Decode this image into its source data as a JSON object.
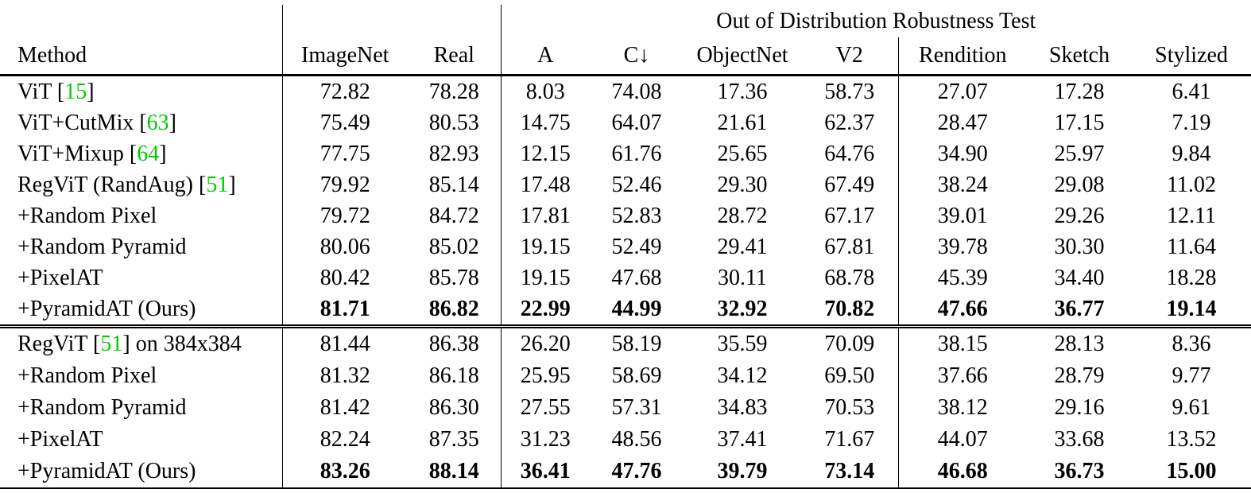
{
  "page": {
    "background_color": "#ffffff",
    "text_color": "#000000",
    "citation_color": "#00cc00"
  },
  "table": {
    "span_header": "Out of Distribution Robustness Test",
    "columns": [
      "Method",
      "ImageNet",
      "Real",
      "A",
      "C↓",
      "ObjectNet",
      "V2",
      "Rendition",
      "Sketch",
      "Stylized"
    ],
    "groups": [
      {
        "rows": [
          {
            "method": {
              "pre": "ViT ",
              "cite": "15",
              "post": ""
            },
            "bold": false,
            "values": [
              "72.82",
              "78.28",
              "8.03",
              "74.08",
              "17.36",
              "58.73",
              "27.07",
              "17.28",
              "6.41"
            ]
          },
          {
            "method": {
              "pre": "ViT+CutMix ",
              "cite": "63",
              "post": ""
            },
            "bold": false,
            "values": [
              "75.49",
              "80.53",
              "14.75",
              "64.07",
              "21.61",
              "62.37",
              "28.47",
              "17.15",
              "7.19"
            ]
          },
          {
            "method": {
              "pre": "ViT+Mixup ",
              "cite": "64",
              "post": ""
            },
            "bold": false,
            "values": [
              "77.75",
              "82.93",
              "12.15",
              "61.76",
              "25.65",
              "64.76",
              "34.90",
              "25.97",
              "9.84"
            ]
          },
          {
            "method": {
              "pre": "RegViT (RandAug) ",
              "cite": "51",
              "post": ""
            },
            "bold": false,
            "values": [
              "79.92",
              "85.14",
              "17.48",
              "52.46",
              "29.30",
              "67.49",
              "38.24",
              "29.08",
              "11.02"
            ]
          },
          {
            "method": {
              "pre": "+Random Pixel",
              "cite": "",
              "post": ""
            },
            "bold": false,
            "values": [
              "79.72",
              "84.72",
              "17.81",
              "52.83",
              "28.72",
              "67.17",
              "39.01",
              "29.26",
              "12.11"
            ]
          },
          {
            "method": {
              "pre": "+Random Pyramid",
              "cite": "",
              "post": ""
            },
            "bold": false,
            "values": [
              "80.06",
              "85.02",
              "19.15",
              "52.49",
              "29.41",
              "67.81",
              "39.78",
              "30.30",
              "11.64"
            ]
          },
          {
            "method": {
              "pre": "+PixelAT",
              "cite": "",
              "post": ""
            },
            "bold": false,
            "values": [
              "80.42",
              "85.78",
              "19.15",
              "47.68",
              "30.11",
              "68.78",
              "45.39",
              "34.40",
              "18.28"
            ]
          },
          {
            "method": {
              "pre": "+PyramidAT (Ours)",
              "cite": "",
              "post": ""
            },
            "bold": true,
            "values": [
              "81.71",
              "86.82",
              "22.99",
              "44.99",
              "32.92",
              "70.82",
              "47.66",
              "36.77",
              "19.14"
            ]
          }
        ]
      },
      {
        "rows": [
          {
            "method": {
              "pre": "RegViT ",
              "cite": "51",
              "post": " on 384x384"
            },
            "bold": false,
            "values": [
              "81.44",
              "86.38",
              "26.20",
              "58.19",
              "35.59",
              "70.09",
              "38.15",
              "28.13",
              "8.36"
            ]
          },
          {
            "method": {
              "pre": "+Random Pixel",
              "cite": "",
              "post": ""
            },
            "bold": false,
            "values": [
              "81.32",
              "86.18",
              "25.95",
              "58.69",
              "34.12",
              "69.50",
              "37.66",
              "28.79",
              "9.77"
            ]
          },
          {
            "method": {
              "pre": "+Random Pyramid",
              "cite": "",
              "post": ""
            },
            "bold": false,
            "values": [
              "81.42",
              "86.30",
              "27.55",
              "57.31",
              "34.83",
              "70.53",
              "38.12",
              "29.16",
              "9.61"
            ]
          },
          {
            "method": {
              "pre": "+PixelAT",
              "cite": "",
              "post": ""
            },
            "bold": false,
            "values": [
              "82.24",
              "87.35",
              "31.23",
              "48.56",
              "37.41",
              "71.67",
              "44.07",
              "33.68",
              "13.52"
            ]
          },
          {
            "method": {
              "pre": "+PyramidAT (Ours)",
              "cite": "",
              "post": ""
            },
            "bold": true,
            "values": [
              "83.26",
              "88.14",
              "36.41",
              "47.76",
              "39.79",
              "73.14",
              "46.68",
              "36.73",
              "15.00"
            ]
          }
        ]
      }
    ]
  }
}
